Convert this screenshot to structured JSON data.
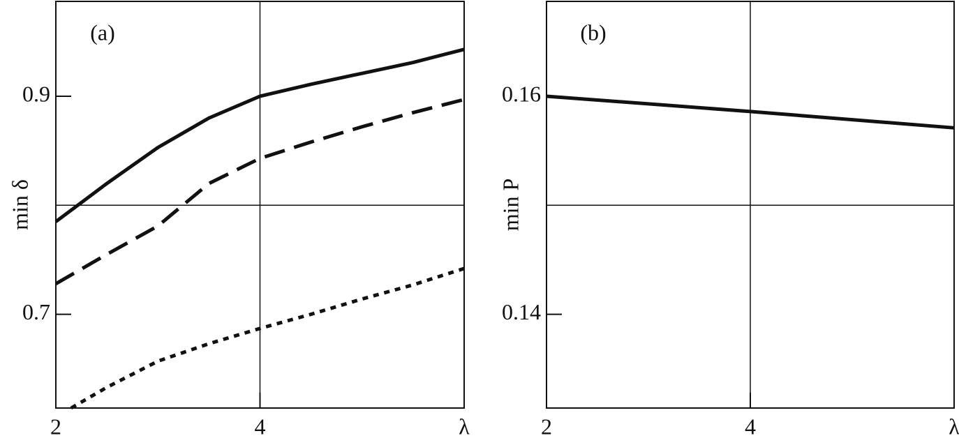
{
  "chart_data": [
    {
      "type": "line",
      "annotation": "(a)",
      "ylabel": "min δ",
      "xlabel": "λ",
      "xlim": [
        2,
        6
      ],
      "ylim": [
        0.614,
        0.987
      ],
      "xticks": [
        2,
        4
      ],
      "yticks": [
        0.7,
        0.9
      ],
      "xgrid": [
        4
      ],
      "ygrid": [
        0.8
      ],
      "series": [
        {
          "color": "#111111",
          "dash": "solid",
          "x": [
            2,
            2.5,
            3,
            3.5,
            4,
            4.5,
            5,
            5.5,
            6
          ],
          "values": [
            0.785,
            0.82,
            0.853,
            0.88,
            0.9,
            0.911,
            0.921,
            0.931,
            0.943
          ]
        },
        {
          "color": "#111111",
          "dash": "dashed",
          "x": [
            2,
            2.5,
            3,
            3.5,
            4,
            4.5,
            5,
            5.5,
            6
          ],
          "values": [
            0.728,
            0.755,
            0.781,
            0.82,
            0.843,
            0.858,
            0.872,
            0.885,
            0.897
          ]
        },
        {
          "color": "#111111",
          "dash": "dotted",
          "x": [
            2.15,
            2.5,
            3,
            3.5,
            4,
            4.5,
            5,
            5.5,
            6
          ],
          "values": [
            0.614,
            0.633,
            0.657,
            0.673,
            0.687,
            0.7,
            0.714,
            0.727,
            0.742
          ]
        }
      ]
    },
    {
      "type": "line",
      "annotation": "(b)",
      "ylabel": "min P",
      "xlabel": "λ",
      "xlim": [
        2,
        6
      ],
      "ylim": [
        0.1314,
        0.1687
      ],
      "xticks": [
        2,
        4
      ],
      "yticks": [
        0.14,
        0.16
      ],
      "xgrid": [
        4
      ],
      "ygrid": [
        0.15
      ],
      "series": [
        {
          "color": "#111111",
          "dash": "solid",
          "x": [
            2,
            4,
            6
          ],
          "values": [
            0.16,
            0.1586,
            0.1571
          ]
        }
      ]
    }
  ]
}
